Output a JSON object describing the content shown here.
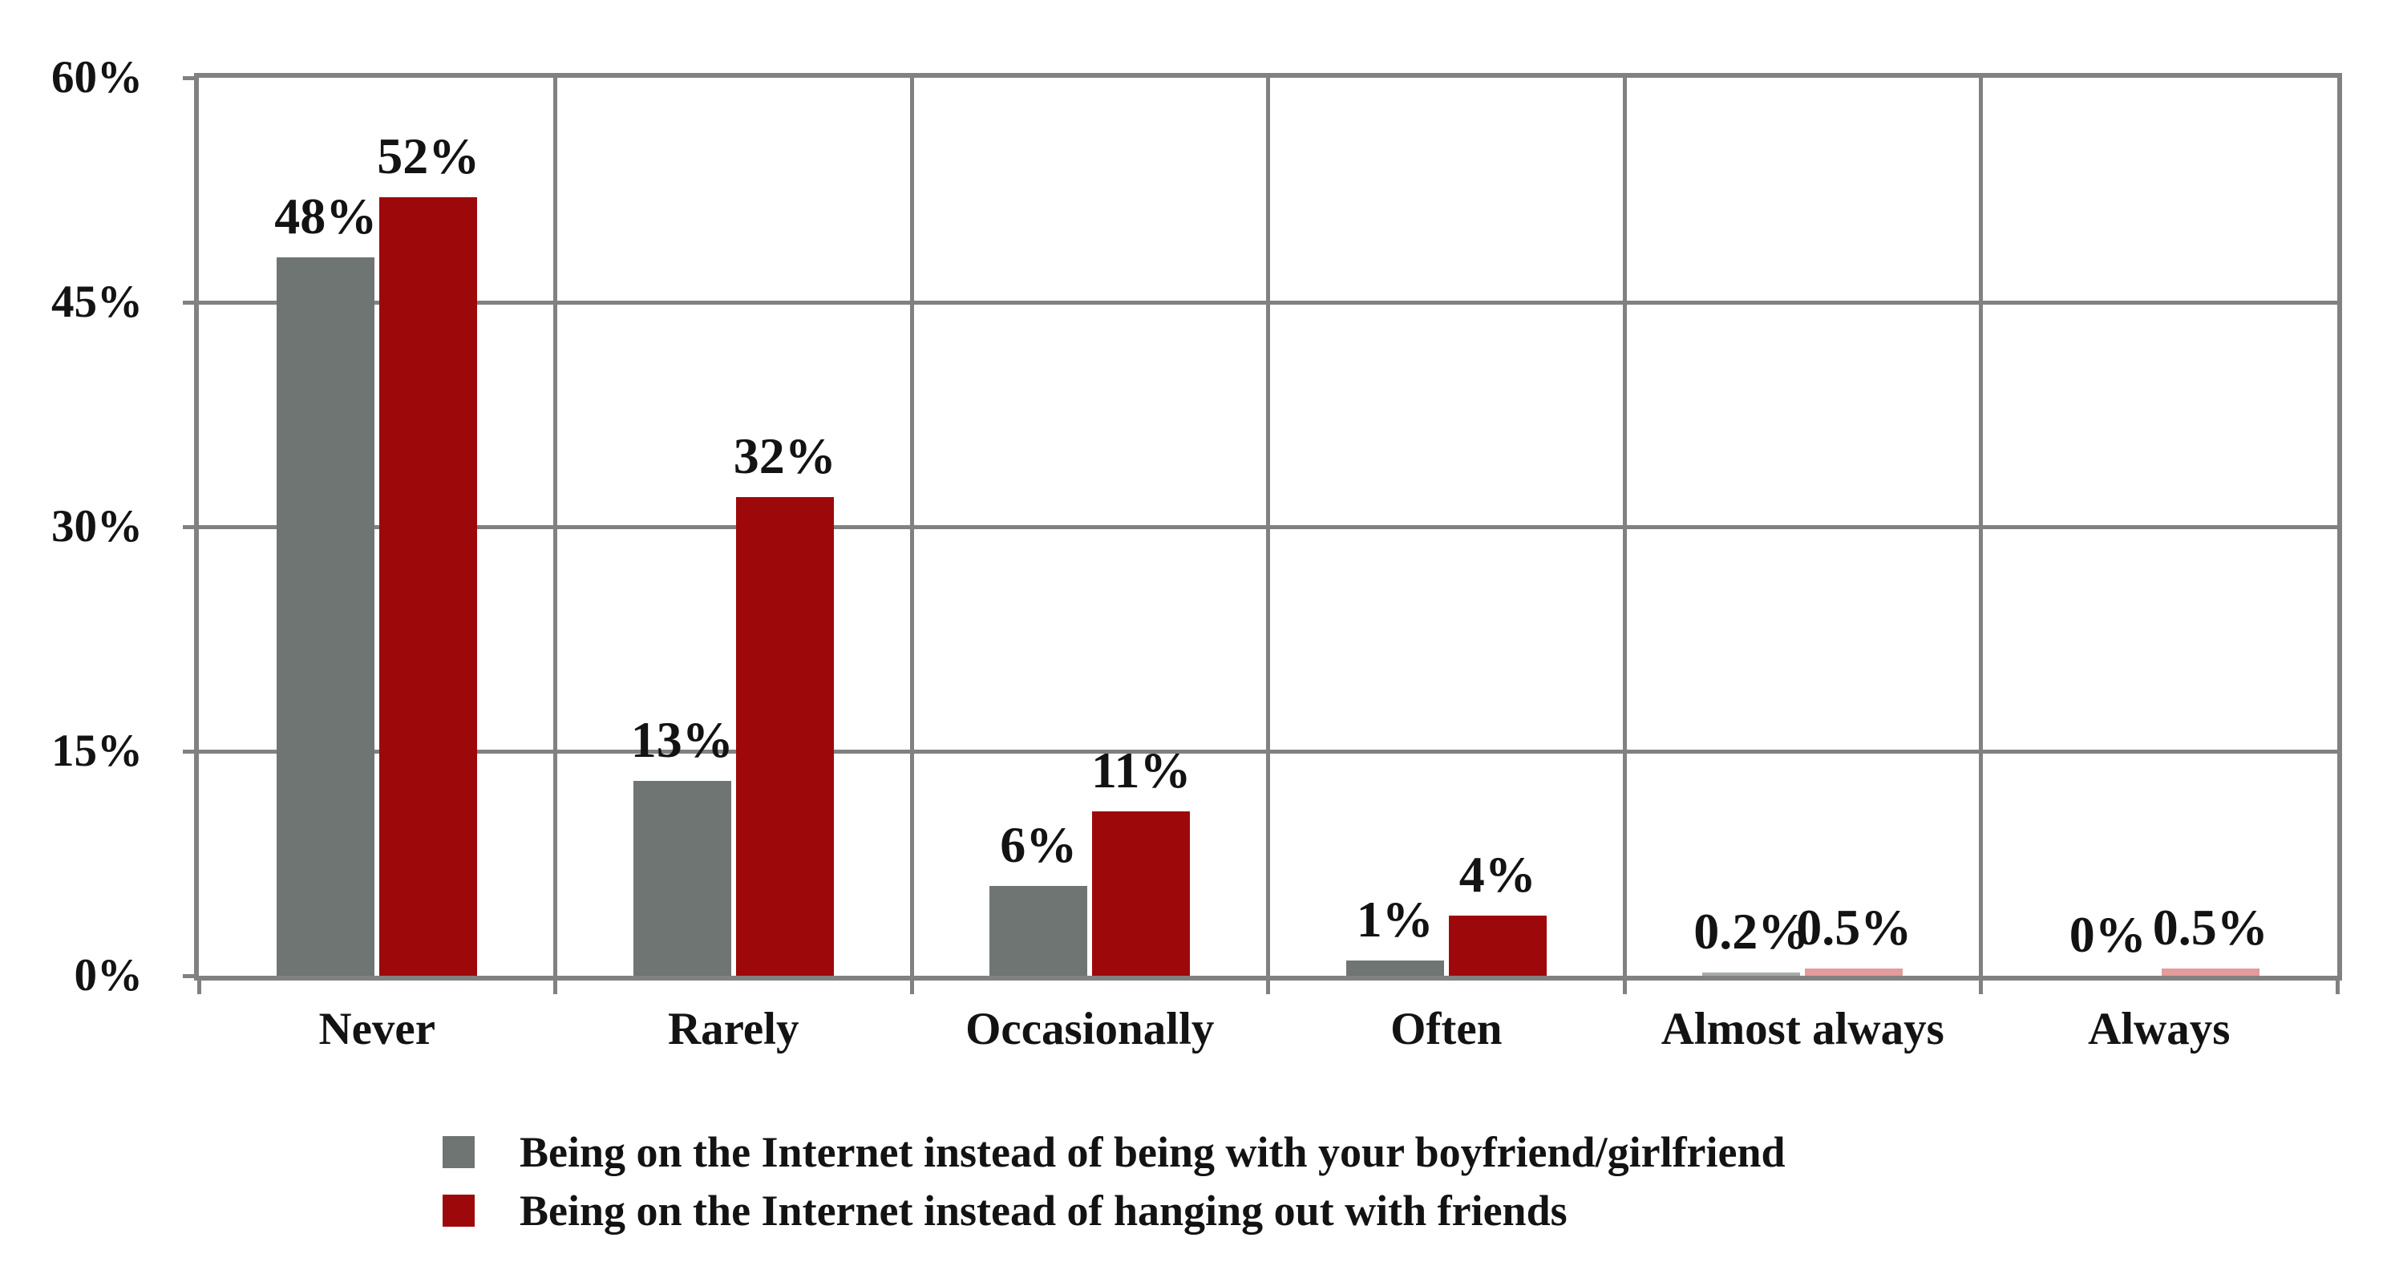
{
  "chart_data": {
    "type": "bar",
    "title": "",
    "xlabel": "",
    "ylabel": "",
    "ylim": [
      0,
      60
    ],
    "grid": true,
    "legend_position": "bottom",
    "categories": [
      "Never",
      "Rarely",
      "Occasionally",
      "Often",
      "Almost always",
      "Always"
    ],
    "ytick_values": [
      60,
      45,
      30,
      15,
      0
    ],
    "ytick_labels": [
      "60%",
      "45%",
      "30%",
      "15%",
      "0%"
    ],
    "series": [
      {
        "name": "Being on the Internet instead of being with your boyfriend/girlfriend",
        "color": "#6F7572",
        "tiny_color": "#A7ACAA",
        "values": [
          48,
          13,
          6,
          1,
          0.2,
          0
        ],
        "labels": [
          "48%",
          "13%",
          "6%",
          "1%",
          "0.2%",
          "0%"
        ]
      },
      {
        "name": "Being on the Internet instead of hanging out with friends",
        "color": "#9D090B",
        "tiny_color": "#E39B9C",
        "values": [
          52,
          32,
          11,
          4,
          0.5,
          0.5
        ],
        "labels": [
          "52%",
          "32%",
          "11%",
          "4%",
          "0.5%",
          "0.5%"
        ]
      }
    ]
  },
  "colors": {
    "grid": "#818181",
    "text": "#131313",
    "background": "#FFFFFF"
  }
}
